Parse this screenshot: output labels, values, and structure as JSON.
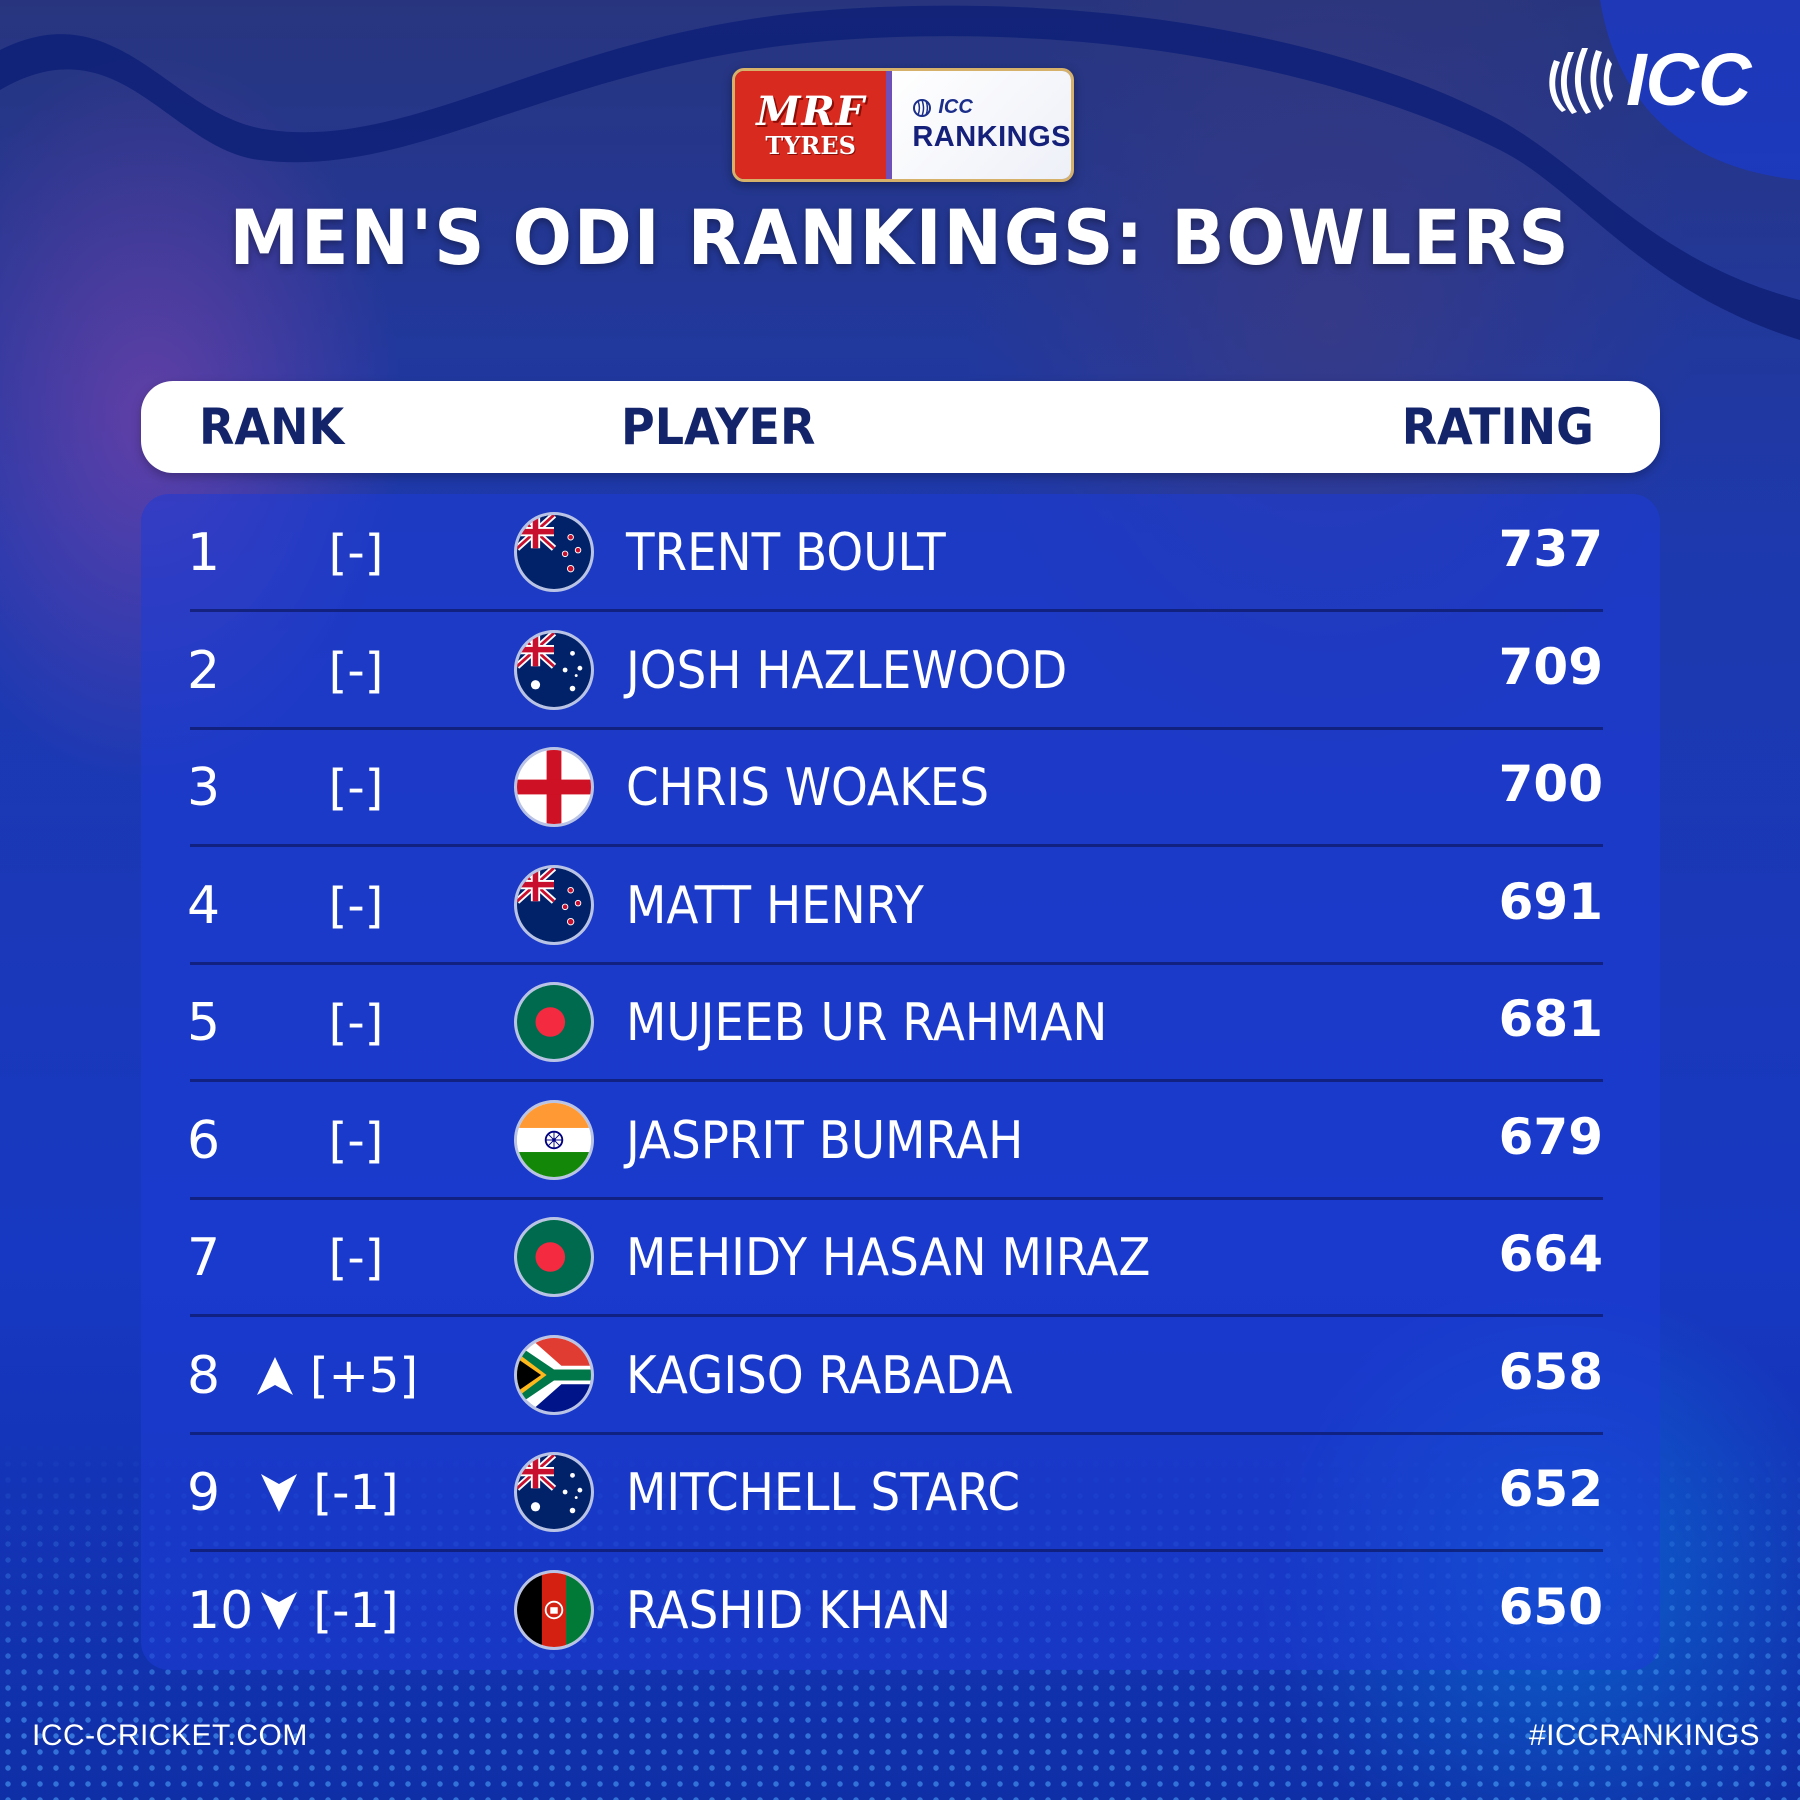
{
  "header": {
    "sponsor_word": "MRF",
    "sponsor_sub": "TYRES",
    "badge_icc": "ICC",
    "badge_rankings": "RANKINGS",
    "logo_text": "ICC",
    "title": "MEN'S ODI RANKINGS: BOWLERS"
  },
  "table": {
    "columns": {
      "rank": "RANK",
      "player": "PLAYER",
      "rating": "RATING"
    },
    "rows": [
      {
        "rank": "1",
        "movement": "[-]",
        "trend": "none",
        "flag": "new-zealand",
        "player": "TRENT BOULT",
        "rating": "737"
      },
      {
        "rank": "2",
        "movement": "[-]",
        "trend": "none",
        "flag": "australia",
        "player": "JOSH HAZLEWOOD",
        "rating": "709"
      },
      {
        "rank": "3",
        "movement": "[-]",
        "trend": "none",
        "flag": "england",
        "player": "CHRIS WOAKES",
        "rating": "700"
      },
      {
        "rank": "4",
        "movement": "[-]",
        "trend": "none",
        "flag": "new-zealand",
        "player": "MATT HENRY",
        "rating": "691"
      },
      {
        "rank": "5",
        "movement": "[-]",
        "trend": "none",
        "flag": "bangladesh",
        "player": "MUJEEB UR RAHMAN",
        "rating": "681"
      },
      {
        "rank": "6",
        "movement": "[-]",
        "trend": "none",
        "flag": "india",
        "player": "JASPRIT BUMRAH",
        "rating": "679"
      },
      {
        "rank": "7",
        "movement": "[-]",
        "trend": "none",
        "flag": "bangladesh",
        "player": "MEHIDY HASAN MIRAZ",
        "rating": "664"
      },
      {
        "rank": "8",
        "movement": "[+5]",
        "trend": "up",
        "flag": "south-africa",
        "player": "KAGISO RABADA",
        "rating": "658"
      },
      {
        "rank": "9",
        "movement": "[-1]",
        "trend": "down",
        "flag": "australia",
        "player": "MITCHELL STARC",
        "rating": "652"
      },
      {
        "rank": "10",
        "movement": "[-1]",
        "trend": "down",
        "flag": "afghanistan",
        "player": "RASHID KHAN",
        "rating": "650"
      }
    ]
  },
  "footer": {
    "site": "ICC-CRICKET.COM",
    "hashtag": "#ICCRANKINGS"
  },
  "colors": {
    "background": "#1535b8",
    "header_bar": "#ffffff",
    "header_text": "#14246b",
    "sponsor_red": "#d92a1f"
  }
}
